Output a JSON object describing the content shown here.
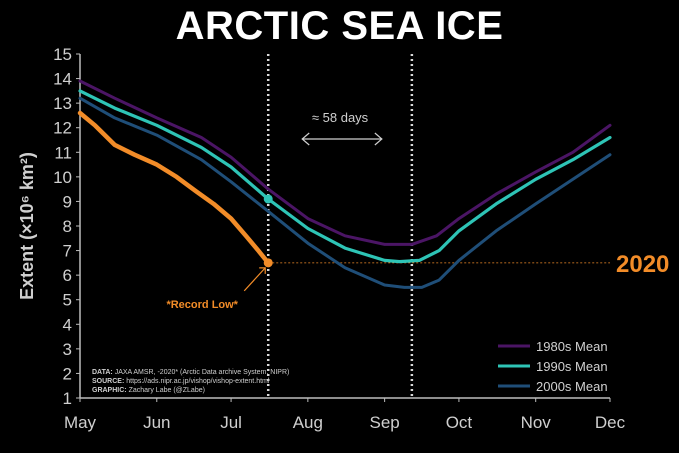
{
  "title": "ARCTIC SEA ICE",
  "colors": {
    "y1980s": "#4b1565",
    "y1990s": "#2ec4b6",
    "y2000s": "#1f4e78",
    "y2020": "#f28c28",
    "text": "#cfcfcf",
    "background": "#000000"
  },
  "chart_data": {
    "type": "line",
    "title": "ARCTIC SEA ICE",
    "xlabel": "",
    "ylabel": "Extent (×10⁶ km²)",
    "ylim": [
      1,
      15
    ],
    "yticks": [
      1,
      2,
      3,
      4,
      5,
      6,
      7,
      8,
      9,
      10,
      11,
      12,
      13,
      14,
      15
    ],
    "x_unit": "day-of-year",
    "xlim": [
      121,
      335
    ],
    "xticks": [
      {
        "label": "May",
        "day": 121
      },
      {
        "label": "Jun",
        "day": 152
      },
      {
        "label": "Jul",
        "day": 182
      },
      {
        "label": "Aug",
        "day": 213
      },
      {
        "label": "Sep",
        "day": 244
      },
      {
        "label": "Oct",
        "day": 274
      },
      {
        "label": "Nov",
        "day": 305
      },
      {
        "label": "Dec",
        "day": 335
      }
    ],
    "series": [
      {
        "name": "1980s Mean",
        "color": "#4b1565",
        "x": [
          121,
          135,
          152,
          170,
          182,
          197,
          213,
          228,
          244,
          255,
          265,
          274,
          289,
          305,
          320,
          335
        ],
        "y": [
          13.9,
          13.2,
          12.4,
          11.6,
          10.8,
          9.5,
          8.3,
          7.6,
          7.25,
          7.25,
          7.6,
          8.3,
          9.3,
          10.2,
          11.0,
          12.1
        ]
      },
      {
        "name": "1990s Mean",
        "color": "#2ec4b6",
        "x": [
          121,
          135,
          152,
          170,
          182,
          197,
          213,
          228,
          244,
          250,
          258,
          266,
          274,
          289,
          305,
          320,
          335
        ],
        "y": [
          13.5,
          12.8,
          12.1,
          11.2,
          10.4,
          9.1,
          7.9,
          7.1,
          6.6,
          6.55,
          6.6,
          7.0,
          7.8,
          8.9,
          9.9,
          10.7,
          11.6
        ]
      },
      {
        "name": "2000s Mean",
        "color": "#1f4e78",
        "x": [
          121,
          135,
          152,
          170,
          182,
          197,
          213,
          228,
          244,
          252,
          259,
          266,
          274,
          289,
          305,
          320,
          335
        ],
        "y": [
          13.2,
          12.4,
          11.7,
          10.7,
          9.8,
          8.6,
          7.3,
          6.3,
          5.6,
          5.5,
          5.5,
          5.8,
          6.6,
          7.8,
          8.9,
          9.9,
          10.9
        ]
      },
      {
        "name": "2020",
        "color": "#f28c28",
        "x": [
          121,
          127,
          135,
          143,
          152,
          160,
          168,
          175,
          182,
          188,
          193,
          197
        ],
        "y": [
          12.6,
          12.1,
          11.3,
          10.9,
          10.5,
          10.0,
          9.4,
          8.9,
          8.3,
          7.6,
          7.0,
          6.5
        ]
      }
    ],
    "marker_2020": {
      "day": 197,
      "value": 6.5
    },
    "marker_1990s": {
      "day": 197,
      "value": 9.1
    },
    "vlines_day": [
      197,
      255
    ],
    "record_line_value": 6.5,
    "label_2020": "2020",
    "record_low_label": "*Record Low*",
    "days_annotation": "≈ 58 days",
    "legend": {
      "position": "lower-right",
      "entries": [
        "1980s Mean",
        "1990s Mean",
        "2000s Mean"
      ]
    },
    "grid": false
  },
  "source": {
    "data_label": "DATA:",
    "data_text": "JAXA AMSR, -2020* (Arctic Data archive System, NIPR)",
    "source_label": "SOURCE:",
    "source_text": "https://ads.nipr.ac.jp/vishop/vishop-extent.html",
    "graphic_label": "GRAPHIC:",
    "graphic_text": "Zachary Labe (@ZLabe)"
  }
}
